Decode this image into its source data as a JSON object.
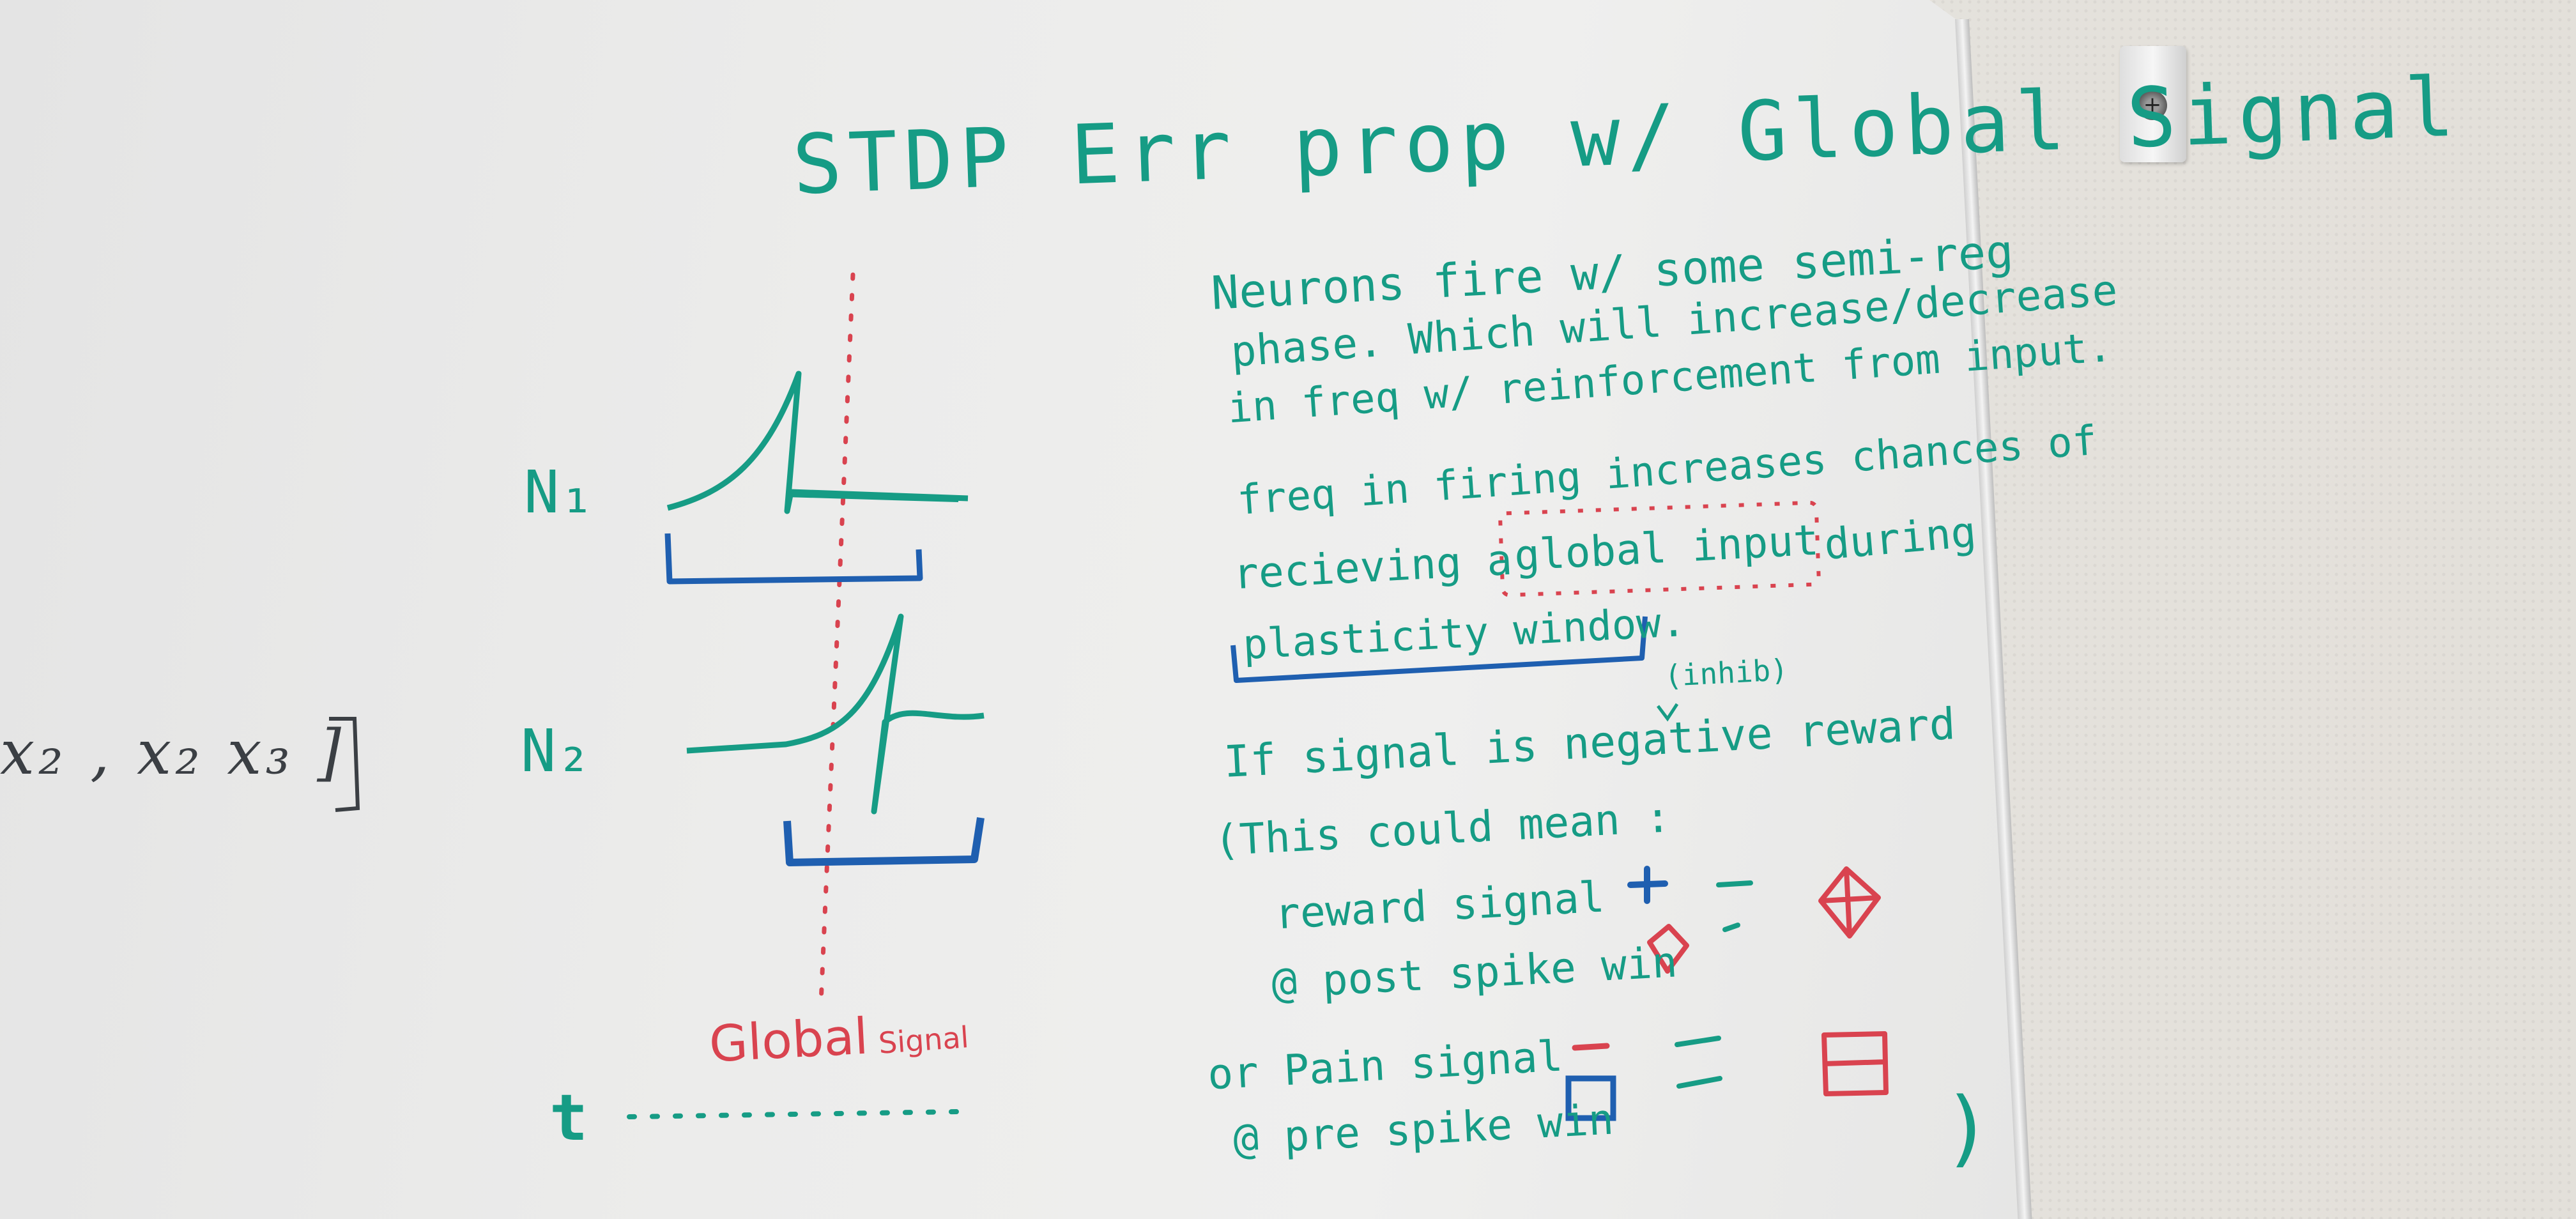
{
  "board": {
    "title": "STDP Err prop w/ Global Signal",
    "neuron_labels": [
      "N₁",
      "N₂"
    ],
    "time_label": "t",
    "global_signal_label": "Global",
    "global_signal_sub": "Signal",
    "left_partial": "x₂ , x₂ x₃ ]",
    "notes": {
      "line1": "Neurons fire w/ some semi-reg",
      "line2": "phase. Which will increase/decrease",
      "line3": "in freq w/ reinforcement from input.",
      "line4": "freq in firing increases chances of",
      "line5_a": "recieving a",
      "line5_b": "global input",
      "line5_c": "during",
      "line6": "plasticity window.",
      "inhib": "(inhib)",
      "line7": "If signal is negative reward",
      "line8": "(This could mean :",
      "reward_1": "reward signal",
      "reward_2": "@ post spike win",
      "pain_1": "or Pain signal",
      "pain_2": "@ pre spike win",
      "close_paren": ")"
    }
  },
  "colors": {
    "marker_teal": "#169c85",
    "marker_red": "#d9434f",
    "marker_blue": "#1f5fb0",
    "marker_black": "#3b3f44",
    "wall": "#e7e4de",
    "board": "#ececeb"
  }
}
